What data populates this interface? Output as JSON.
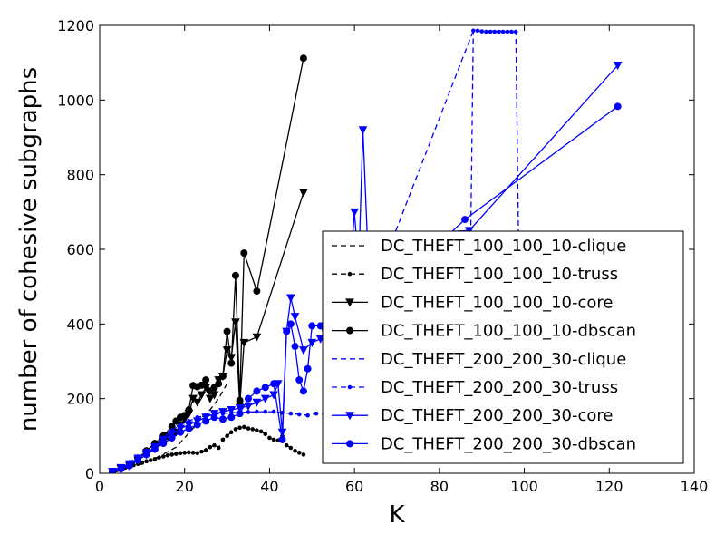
{
  "chart_data": {
    "type": "line",
    "xlabel": "K",
    "ylabel": "number of cohesive subgraphs",
    "xlim": [
      0,
      140
    ],
    "ylim": [
      0,
      1200
    ],
    "xticks": [
      0,
      20,
      40,
      60,
      80,
      100,
      120,
      140
    ],
    "yticks": [
      0,
      200,
      400,
      600,
      800,
      1000,
      1200
    ],
    "xtick_labels": [
      "0",
      "20",
      "40",
      "60",
      "80",
      "100",
      "120",
      "140"
    ],
    "ytick_labels": [
      "0",
      "200",
      "400",
      "600",
      "800",
      "1000",
      "1200"
    ],
    "grid": false,
    "legend_position": "lower-right",
    "series": [
      {
        "name": "DC_THEFT_100_100_10-clique",
        "color": "#000000",
        "linestyle": "dashed",
        "marker": "none",
        "x": [
          3,
          6,
          10,
          14,
          18,
          20,
          22,
          24,
          26,
          28,
          30
        ],
        "y": [
          5,
          12,
          25,
          45,
          70,
          95,
          120,
          150,
          170,
          200,
          240
        ]
      },
      {
        "name": "DC_THEFT_100_100_10-truss",
        "color": "#000000",
        "linestyle": "dashed",
        "marker": "dot",
        "x": [
          3,
          4,
          5,
          6,
          7,
          8,
          9,
          10,
          11,
          12,
          13,
          14,
          15,
          16,
          17,
          18,
          19,
          20,
          21,
          22,
          23,
          24,
          25,
          26,
          27,
          28,
          29,
          30,
          31,
          32,
          33,
          34,
          35,
          36,
          37,
          38,
          39,
          40,
          41,
          42,
          43,
          44,
          45,
          46,
          47,
          48
        ],
        "y": [
          4,
          8,
          12,
          15,
          18,
          22,
          25,
          28,
          32,
          35,
          38,
          42,
          45,
          48,
          50,
          52,
          54,
          55,
          56,
          55,
          54,
          58,
          62,
          70,
          75,
          68,
          90,
          100,
          110,
          118,
          122,
          124,
          120,
          118,
          115,
          112,
          105,
          95,
          90,
          88,
          100,
          75,
          68,
          60,
          55,
          50
        ]
      },
      {
        "name": "DC_THEFT_100_100_10-core",
        "color": "#000000",
        "linestyle": "solid",
        "marker": "triangle-down",
        "x": [
          3,
          5,
          7,
          9,
          11,
          13,
          15,
          16,
          17,
          18,
          19,
          20,
          21,
          22,
          23,
          24,
          25,
          26,
          27,
          28,
          29,
          30,
          31,
          32,
          33,
          34,
          37,
          48
        ],
        "y": [
          5,
          12,
          20,
          35,
          50,
          65,
          85,
          100,
          95,
          110,
          130,
          145,
          160,
          200,
          190,
          210,
          230,
          200,
          210,
          250,
          260,
          330,
          310,
          405,
          180,
          350,
          365,
          752
        ]
      },
      {
        "name": "DC_THEFT_100_100_10-dbscan",
        "color": "#000000",
        "linestyle": "solid",
        "marker": "circle",
        "x": [
          3,
          5,
          7,
          9,
          11,
          13,
          15,
          17,
          18,
          19,
          20,
          21,
          22,
          23,
          24,
          25,
          26,
          27,
          28,
          29,
          30,
          31,
          32,
          33,
          34,
          37,
          48
        ],
        "y": [
          5,
          12,
          22,
          40,
          60,
          80,
          100,
          125,
          140,
          150,
          155,
          170,
          235,
          232,
          236,
          250,
          220,
          230,
          240,
          260,
          380,
          295,
          530,
          195,
          590,
          488,
          1112
        ]
      },
      {
        "name": "DC_THEFT_200_200_30-clique",
        "color": "#0000ff",
        "linestyle": "dashed",
        "marker": "none",
        "x": [
          87,
          88,
          98,
          99
        ],
        "y": [
          300,
          1185,
          1185,
          300
        ]
      },
      {
        "name": "DC_THEFT_200_200_30-truss",
        "color": "#0000ff",
        "linestyle": "dashed",
        "marker": "dot",
        "x": [
          3,
          5,
          7,
          9,
          11,
          13,
          15,
          17,
          19,
          21,
          23,
          25,
          27,
          29,
          31,
          33,
          35,
          37,
          39,
          41,
          43,
          45,
          47,
          49,
          51,
          53,
          88,
          89,
          90,
          91,
          92,
          93,
          94,
          95,
          96,
          97,
          98
        ],
        "y": [
          5,
          15,
          30,
          45,
          60,
          75,
          95,
          115,
          130,
          140,
          150,
          155,
          158,
          160,
          162,
          163,
          164,
          165,
          165,
          165,
          162,
          160,
          158,
          155,
          160,
          158,
          1186,
          1186,
          1184,
          1183,
          1183,
          1183,
          1183,
          1183,
          1183,
          1183,
          1183
        ]
      },
      {
        "name": "DC_THEFT_200_200_30-core",
        "color": "#0000ff",
        "linestyle": "solid",
        "marker": "triangle-down",
        "x": [
          3,
          5,
          7,
          9,
          11,
          13,
          15,
          17,
          19,
          21,
          23,
          25,
          27,
          29,
          31,
          33,
          35,
          37,
          39,
          41,
          42,
          43,
          44,
          45,
          46,
          48,
          50,
          52,
          54,
          56,
          58,
          60,
          61,
          62,
          63,
          87,
          122
        ],
        "y": [
          5,
          15,
          25,
          40,
          55,
          70,
          90,
          105,
          120,
          130,
          140,
          150,
          160,
          165,
          170,
          175,
          180,
          190,
          200,
          210,
          240,
          110,
          380,
          470,
          420,
          330,
          350,
          360,
          370,
          380,
          390,
          700,
          550,
          920,
          640,
          650,
          1093
        ]
      },
      {
        "name": "DC_THEFT_200_200_30-dbscan",
        "color": "#0000ff",
        "linestyle": "solid",
        "marker": "circle",
        "x": [
          3,
          5,
          7,
          9,
          11,
          13,
          15,
          17,
          19,
          21,
          23,
          25,
          27,
          29,
          31,
          33,
          35,
          37,
          39,
          41,
          43,
          44,
          45,
          46,
          47,
          48,
          49,
          50,
          52,
          54,
          86,
          122
        ],
        "y": [
          5,
          12,
          20,
          35,
          50,
          65,
          80,
          95,
          110,
          120,
          130,
          140,
          150,
          145,
          150,
          160,
          200,
          220,
          230,
          240,
          90,
          380,
          400,
          340,
          250,
          220,
          280,
          395,
          395,
          340,
          680,
          983
        ]
      }
    ]
  }
}
